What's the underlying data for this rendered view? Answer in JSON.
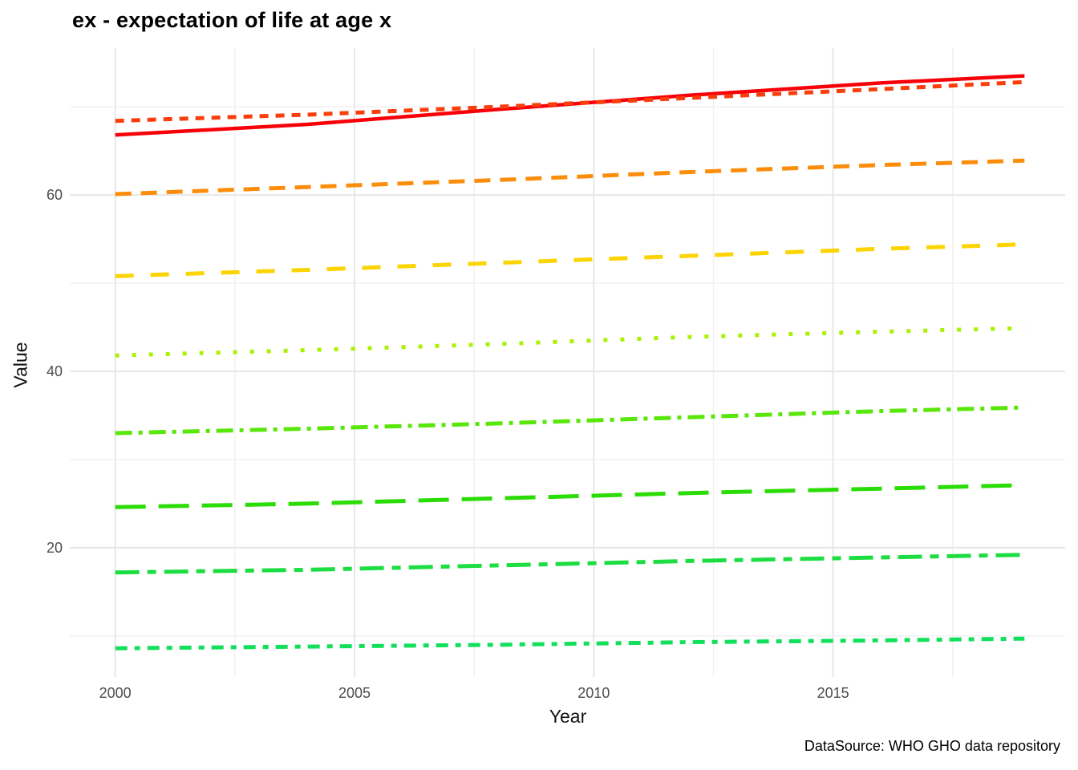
{
  "title": "ex - expectation of life at age x",
  "caption": "DataSource: WHO GHO data repository",
  "chart_data": {
    "type": "line",
    "title": "ex - expectation of life at age x",
    "xlabel": "Year",
    "ylabel": "Value",
    "x": [
      2000,
      2004,
      2008,
      2012,
      2016,
      2019
    ],
    "series": [
      {
        "name": "line1",
        "color": "#F80008",
        "linetype": "solid",
        "values": [
          66.8,
          68.0,
          69.7,
          71.3,
          72.7,
          73.5
        ]
      },
      {
        "name": "line2",
        "color": "#FA3E0E",
        "linetype": "shortdash",
        "values": [
          68.4,
          69.1,
          70.0,
          71.0,
          72.0,
          72.8
        ]
      },
      {
        "name": "line3",
        "color": "#FB8D0A",
        "linetype": "dash",
        "values": [
          60.1,
          60.9,
          61.7,
          62.6,
          63.4,
          63.9
        ]
      },
      {
        "name": "line4",
        "color": "#FCD403",
        "linetype": "longdash2",
        "values": [
          50.8,
          51.5,
          52.3,
          53.1,
          53.9,
          54.4
        ]
      },
      {
        "name": "line5",
        "color": "#ACF104",
        "linetype": "dotted",
        "values": [
          41.8,
          42.4,
          43.1,
          43.9,
          44.5,
          44.9
        ]
      },
      {
        "name": "line6",
        "color": "#59E609",
        "linetype": "dashdot",
        "values": [
          33.0,
          33.5,
          34.1,
          34.8,
          35.5,
          35.9
        ]
      },
      {
        "name": "line7",
        "color": "#2CDC06",
        "linetype": "longdash",
        "values": [
          24.6,
          25.0,
          25.6,
          26.2,
          26.7,
          27.1
        ]
      },
      {
        "name": "line8",
        "color": "#1CDD41",
        "linetype": "dashshort",
        "values": [
          17.2,
          17.5,
          18.0,
          18.5,
          18.9,
          19.2
        ]
      },
      {
        "name": "line9",
        "color": "#12DF5C",
        "linetype": "dashdotdot",
        "values": [
          8.6,
          8.8,
          9.0,
          9.3,
          9.5,
          9.7
        ]
      }
    ],
    "x_ticks": [
      2000,
      2005,
      2010,
      2015
    ],
    "y_ticks": [
      20,
      40,
      60
    ],
    "x_minor_ticks": [
      2002.5,
      2007.5,
      2012.5,
      2017.5
    ],
    "y_minor_ticks": [
      10,
      30,
      50,
      70
    ],
    "xlim": [
      1999.05,
      2019.85
    ],
    "ylim": [
      5.35,
      76.65
    ],
    "grid": "major+minor",
    "legend": "none",
    "grid_major_color": "#E7E7E7",
    "grid_minor_color": "#F0F0F0",
    "tick_label_color": "#4d4d4d"
  }
}
